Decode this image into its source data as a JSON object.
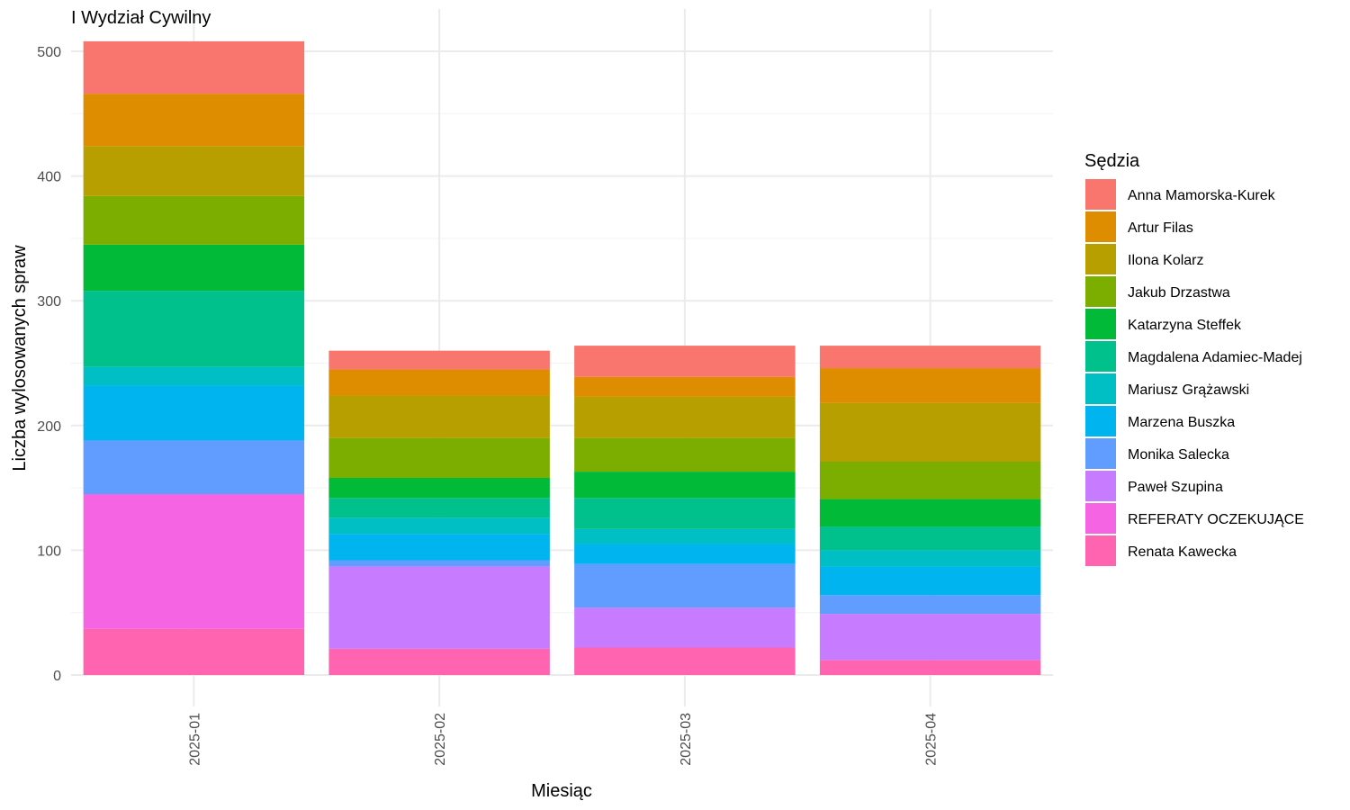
{
  "chart_data": {
    "type": "bar",
    "stacked": true,
    "title": "I Wydział Cywilny",
    "xlabel": "Miesiąc",
    "ylabel": "Liczba wylosowanych spraw",
    "ylim": [
      -20,
      510
    ],
    "yticks": [
      0,
      100,
      200,
      300,
      400,
      500
    ],
    "grid": true,
    "legend_title": "Sędzia",
    "legend_position": "right",
    "categories": [
      "2025-01",
      "2025-02",
      "2025-03",
      "2025-04"
    ],
    "series": [
      {
        "name": "Anna Mamorska-Kurek",
        "color": "#F8766D",
        "values": [
          42,
          15,
          25,
          18
        ]
      },
      {
        "name": "Artur Filas",
        "color": "#DE8C00",
        "values": [
          42,
          21,
          16,
          28
        ]
      },
      {
        "name": "Ilona Kolarz",
        "color": "#B79F00",
        "values": [
          40,
          34,
          33,
          47
        ]
      },
      {
        "name": "Jakub Drzastwa",
        "color": "#7CAE00",
        "values": [
          39,
          32,
          27,
          30
        ]
      },
      {
        "name": "Katarzyna Steffek",
        "color": "#00BA38",
        "values": [
          37,
          16,
          21,
          22
        ]
      },
      {
        "name": "Magdalena Adamiec-Madej",
        "color": "#00C08B",
        "values": [
          61,
          16,
          25,
          19
        ]
      },
      {
        "name": "Mariusz Grążawski",
        "color": "#00BFC4",
        "values": [
          15,
          13,
          12,
          13
        ]
      },
      {
        "name": "Marzena Buszka",
        "color": "#00B4F0",
        "values": [
          44,
          21,
          16,
          23
        ]
      },
      {
        "name": "Monika Salecka",
        "color": "#619CFF",
        "values": [
          43,
          5,
          35,
          15
        ]
      },
      {
        "name": "Paweł Szupina",
        "color": "#C77CFF",
        "values": [
          0,
          66,
          32,
          37
        ]
      },
      {
        "name": "REFERATY OCZEKUJĄCE",
        "color": "#F564E3",
        "values": [
          108,
          0,
          0,
          0
        ]
      },
      {
        "name": "Renata Kawecka",
        "color": "#FF64B0",
        "values": [
          37,
          21,
          22,
          12
        ]
      }
    ]
  }
}
